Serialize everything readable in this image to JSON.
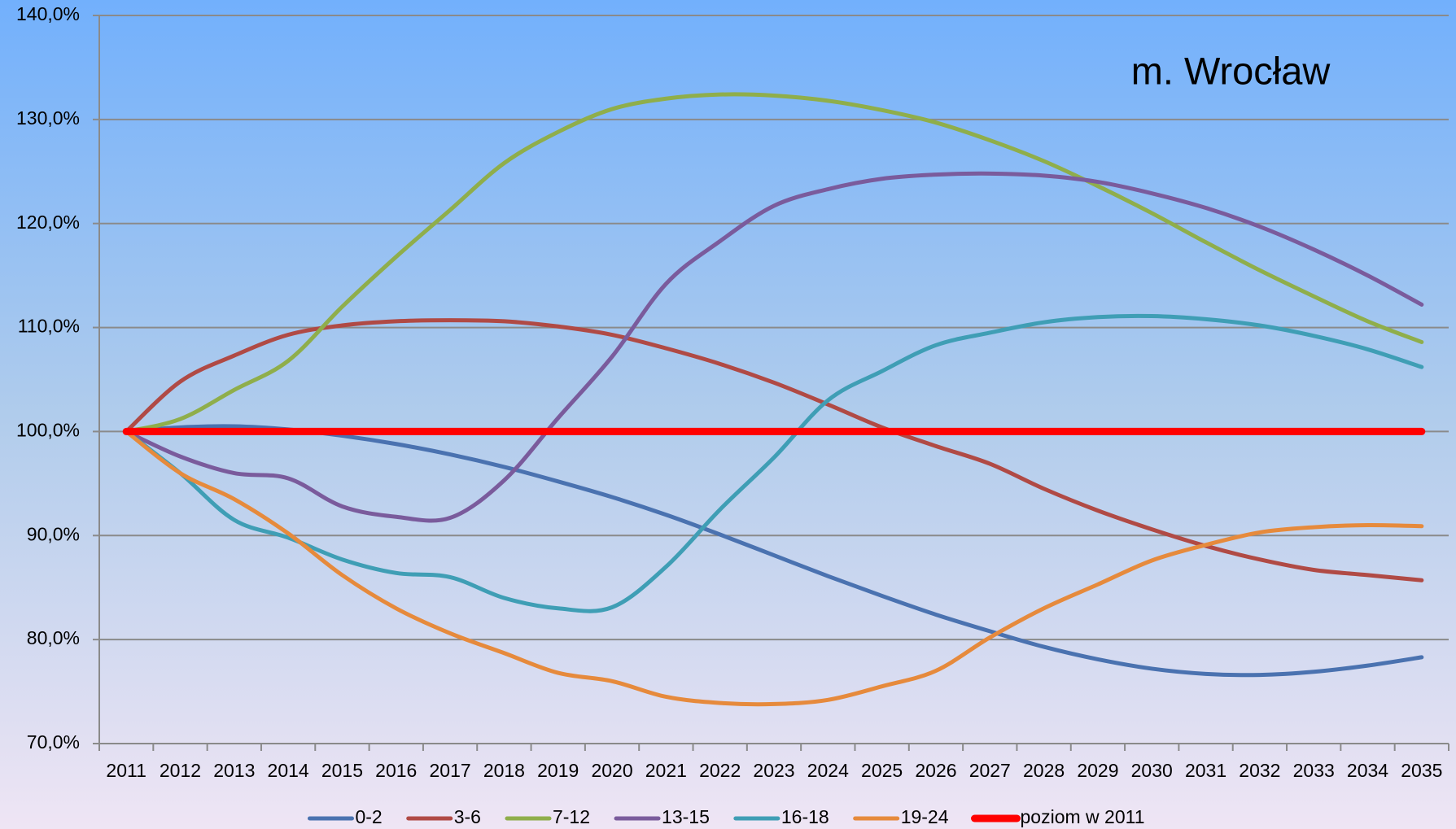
{
  "chart_data": {
    "type": "line",
    "title": "m. Wrocław",
    "categories": [
      "2011",
      "2012",
      "2013",
      "2014",
      "2015",
      "2016",
      "2017",
      "2018",
      "2019",
      "2020",
      "2021",
      "2022",
      "2023",
      "2024",
      "2025",
      "2026",
      "2027",
      "2028",
      "2029",
      "2030",
      "2031",
      "2032",
      "2033",
      "2034",
      "2035"
    ],
    "series": [
      {
        "name": "0-2",
        "color": "#4a72b0",
        "values": [
          100,
          100.4,
          100.5,
          100.2,
          99.6,
          98.8,
          97.8,
          96.6,
          95.2,
          93.7,
          92.0,
          90.1,
          88.1,
          86.1,
          84.2,
          82.4,
          80.8,
          79.3,
          78.1,
          77.2,
          76.7,
          76.6,
          76.9,
          77.5,
          78.3
        ]
      },
      {
        "name": "3-6",
        "color": "#b04a45",
        "values": [
          100,
          104.8,
          107.3,
          109.3,
          110.2,
          110.6,
          110.7,
          110.6,
          110.1,
          109.3,
          108.0,
          106.5,
          104.7,
          102.6,
          100.4,
          98.6,
          96.9,
          94.5,
          92.4,
          90.6,
          89.0,
          87.7,
          86.7,
          86.2,
          85.7
        ]
      },
      {
        "name": "7-12",
        "color": "#8fae4b",
        "values": [
          100,
          101.2,
          104.0,
          106.8,
          112.0,
          116.8,
          121.3,
          125.8,
          128.8,
          131.0,
          132.0,
          132.4,
          132.3,
          131.8,
          130.9,
          129.7,
          128.0,
          126.0,
          123.6,
          121.0,
          118.2,
          115.5,
          113.0,
          110.6,
          108.6
        ]
      },
      {
        "name": "13-15",
        "color": "#7a5b9c",
        "values": [
          100,
          97.6,
          96.0,
          95.5,
          92.8,
          91.8,
          91.7,
          95.3,
          101.3,
          107.2,
          114.2,
          118.3,
          121.7,
          123.3,
          124.3,
          124.7,
          124.8,
          124.6,
          124.0,
          122.9,
          121.5,
          119.7,
          117.5,
          115.0,
          112.2
        ]
      },
      {
        "name": "16-18",
        "color": "#3f9eb5",
        "values": [
          100,
          96.0,
          91.5,
          89.8,
          87.7,
          86.4,
          86.0,
          84.0,
          83.0,
          83.1,
          87.0,
          92.5,
          97.5,
          103.0,
          105.8,
          108.3,
          109.5,
          110.5,
          111.0,
          111.1,
          110.8,
          110.2,
          109.2,
          107.9,
          106.2
        ]
      },
      {
        "name": "19-24",
        "color": "#e68a3c",
        "values": [
          100,
          96.0,
          93.5,
          90.2,
          86.2,
          83.0,
          80.6,
          78.7,
          76.8,
          76.0,
          74.5,
          73.9,
          73.8,
          74.2,
          75.5,
          77.0,
          80.2,
          83.0,
          85.3,
          87.6,
          89.1,
          90.3,
          90.8,
          91.0,
          90.9
        ]
      },
      {
        "name": "poziom w 2011",
        "color": "#ff0000",
        "values": [
          100,
          100,
          100,
          100,
          100,
          100,
          100,
          100,
          100,
          100,
          100,
          100,
          100,
          100,
          100,
          100,
          100,
          100,
          100,
          100,
          100,
          100,
          100,
          100,
          100
        ]
      }
    ],
    "ylim": [
      70,
      140
    ],
    "yticks": [
      {
        "value": 70,
        "label": "70,0%"
      },
      {
        "value": 80,
        "label": "80,0%"
      },
      {
        "value": 90,
        "label": "90,0%"
      },
      {
        "value": 100,
        "label": "100,0%"
      },
      {
        "value": 110,
        "label": "110,0%"
      },
      {
        "value": 120,
        "label": "120,0%"
      },
      {
        "value": 130,
        "label": "130,0%"
      },
      {
        "value": 140,
        "label": "140,0%"
      }
    ],
    "grid": true,
    "legend": "bottom"
  }
}
